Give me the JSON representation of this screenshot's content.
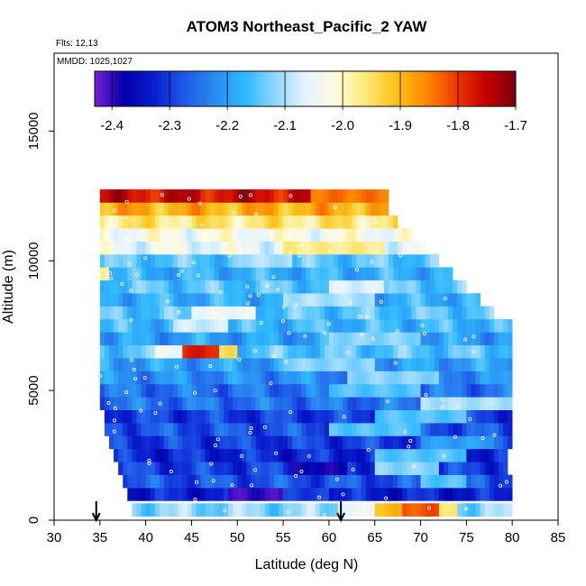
{
  "chart_data": {
    "type": "heatmap",
    "title": "ATOM3 Northeast_Pacific_2 YAW",
    "flights_label": "Flts: 12,13",
    "mmdd_label": "MMDD: 1025,1027",
    "xlabel": "Latitude (deg N)",
    "ylabel": "Altitude (m)",
    "xlim": [
      30,
      85
    ],
    "ylim": [
      0,
      18000
    ],
    "x_ticks": [
      "30",
      "35",
      "40",
      "45",
      "50",
      "55",
      "60",
      "65",
      "70",
      "75",
      "80",
      "85"
    ],
    "y_ticks": [
      "0",
      "5000",
      "10000",
      "15000"
    ],
    "colorbar": {
      "min": -2.43,
      "max": -1.7,
      "tick_labels": [
        "-2.4",
        "-2.3",
        "-2.2",
        "-2.1",
        "-2.0",
        "-1.9",
        "-1.8",
        "-1.7"
      ],
      "colors": [
        "#7a1fd6",
        "#0000a8",
        "#0a1fd0",
        "#1f5ae8",
        "#2a8cf0",
        "#2fb8ff",
        "#8fd6ff",
        "#e6f4ff",
        "#fffbe0",
        "#ffe97a",
        "#ffc21a",
        "#ff8c00",
        "#ee3b00",
        "#c40000",
        "#7a0010"
      ]
    },
    "altitude_bins": [
      {
        "alt": 400,
        "lat": [
          38.5,
          80
        ],
        "base": -2.12,
        "features": [
          [
            61,
            65,
            -2.05
          ],
          [
            65,
            68,
            -1.9
          ],
          [
            68,
            72,
            -1.82
          ],
          [
            72,
            74,
            -1.95
          ]
        ]
      },
      {
        "alt": 1000,
        "lat": [
          38,
          80
        ],
        "base": -2.33,
        "features": [
          [
            49,
            55,
            -2.4
          ],
          [
            55,
            60,
            -2.3
          ]
        ]
      },
      {
        "alt": 1500,
        "lat": [
          37.5,
          80
        ],
        "base": -2.28,
        "features": [
          [
            70,
            75,
            -2.15
          ]
        ]
      },
      {
        "alt": 2000,
        "lat": [
          37,
          79.5
        ],
        "base": -2.3,
        "features": [
          [
            56,
            62,
            -2.38
          ],
          [
            65,
            72,
            -2.12
          ]
        ]
      },
      {
        "alt": 2500,
        "lat": [
          36.5,
          79.5
        ],
        "base": -2.32,
        "features": [
          [
            65,
            75,
            -2.15
          ]
        ]
      },
      {
        "alt": 3000,
        "lat": [
          36,
          80
        ],
        "base": -2.3,
        "features": [
          [
            70,
            78,
            -2.2
          ]
        ]
      },
      {
        "alt": 3500,
        "lat": [
          35.5,
          80
        ],
        "base": -2.28,
        "features": [
          [
            60,
            70,
            -2.15
          ]
        ]
      },
      {
        "alt": 4000,
        "lat": [
          35.5,
          80
        ],
        "base": -2.3,
        "features": [
          [
            65,
            75,
            -2.15
          ]
        ]
      },
      {
        "alt": 4500,
        "lat": [
          35,
          80
        ],
        "base": -2.25,
        "features": [
          [
            70,
            80,
            -2.1
          ]
        ]
      },
      {
        "alt": 5000,
        "lat": [
          35,
          80
        ],
        "base": -2.25,
        "features": [
          [
            60,
            70,
            -2.15
          ]
        ]
      },
      {
        "alt": 5500,
        "lat": [
          35,
          80
        ],
        "base": -2.22,
        "features": [
          [
            62,
            72,
            -2.12
          ]
        ]
      },
      {
        "alt": 6000,
        "lat": [
          35,
          80
        ],
        "base": -2.2,
        "features": [
          [
            55,
            65,
            -2.12
          ]
        ]
      },
      {
        "alt": 6500,
        "lat": [
          35,
          80
        ],
        "base": -2.15,
        "features": [
          [
            41,
            44,
            -2.05
          ],
          [
            44,
            48,
            -1.78
          ],
          [
            48,
            50,
            -1.95
          ]
        ]
      },
      {
        "alt": 7000,
        "lat": [
          35,
          80
        ],
        "base": -2.2,
        "features": [
          [
            60,
            70,
            -2.12
          ]
        ]
      },
      {
        "alt": 7500,
        "lat": [
          35,
          80
        ],
        "base": -2.17,
        "features": [
          [
            43,
            49,
            -2.08
          ]
        ]
      },
      {
        "alt": 8000,
        "lat": [
          35,
          78
        ],
        "base": -2.15,
        "features": [
          [
            45,
            52,
            -2.05
          ]
        ]
      },
      {
        "alt": 8500,
        "lat": [
          35,
          76.5
        ],
        "base": -2.18,
        "features": [
          [
            55,
            65,
            -2.1
          ]
        ]
      },
      {
        "alt": 9000,
        "lat": [
          35,
          75
        ],
        "base": -2.15,
        "features": [
          [
            60,
            66,
            -2.07
          ]
        ]
      },
      {
        "alt": 9500,
        "lat": [
          35,
          73.5
        ],
        "base": -2.18,
        "features": [
          [
            35,
            36,
            -1.98
          ]
        ]
      },
      {
        "alt": 10000,
        "lat": [
          35,
          72
        ],
        "base": -2.15,
        "features": [
          [
            50,
            56,
            -2.1
          ]
        ]
      },
      {
        "alt": 10500,
        "lat": [
          35,
          70.5
        ],
        "base": -2.05,
        "features": [
          [
            55,
            66,
            -1.97
          ]
        ]
      },
      {
        "alt": 11000,
        "lat": [
          35,
          69
        ],
        "base": -2.03,
        "features": []
      },
      {
        "alt": 11500,
        "lat": [
          35,
          67.5
        ],
        "base": -1.96,
        "features": []
      },
      {
        "alt": 12000,
        "lat": [
          35,
          66.5
        ],
        "base": -1.89,
        "features": []
      },
      {
        "alt": 12500,
        "lat": [
          35,
          66.5
        ],
        "base": -1.76,
        "features": [
          [
            58,
            66.5,
            -1.84
          ]
        ]
      }
    ],
    "arrows_at_lat": [
      34.6,
      61.3
    ]
  }
}
